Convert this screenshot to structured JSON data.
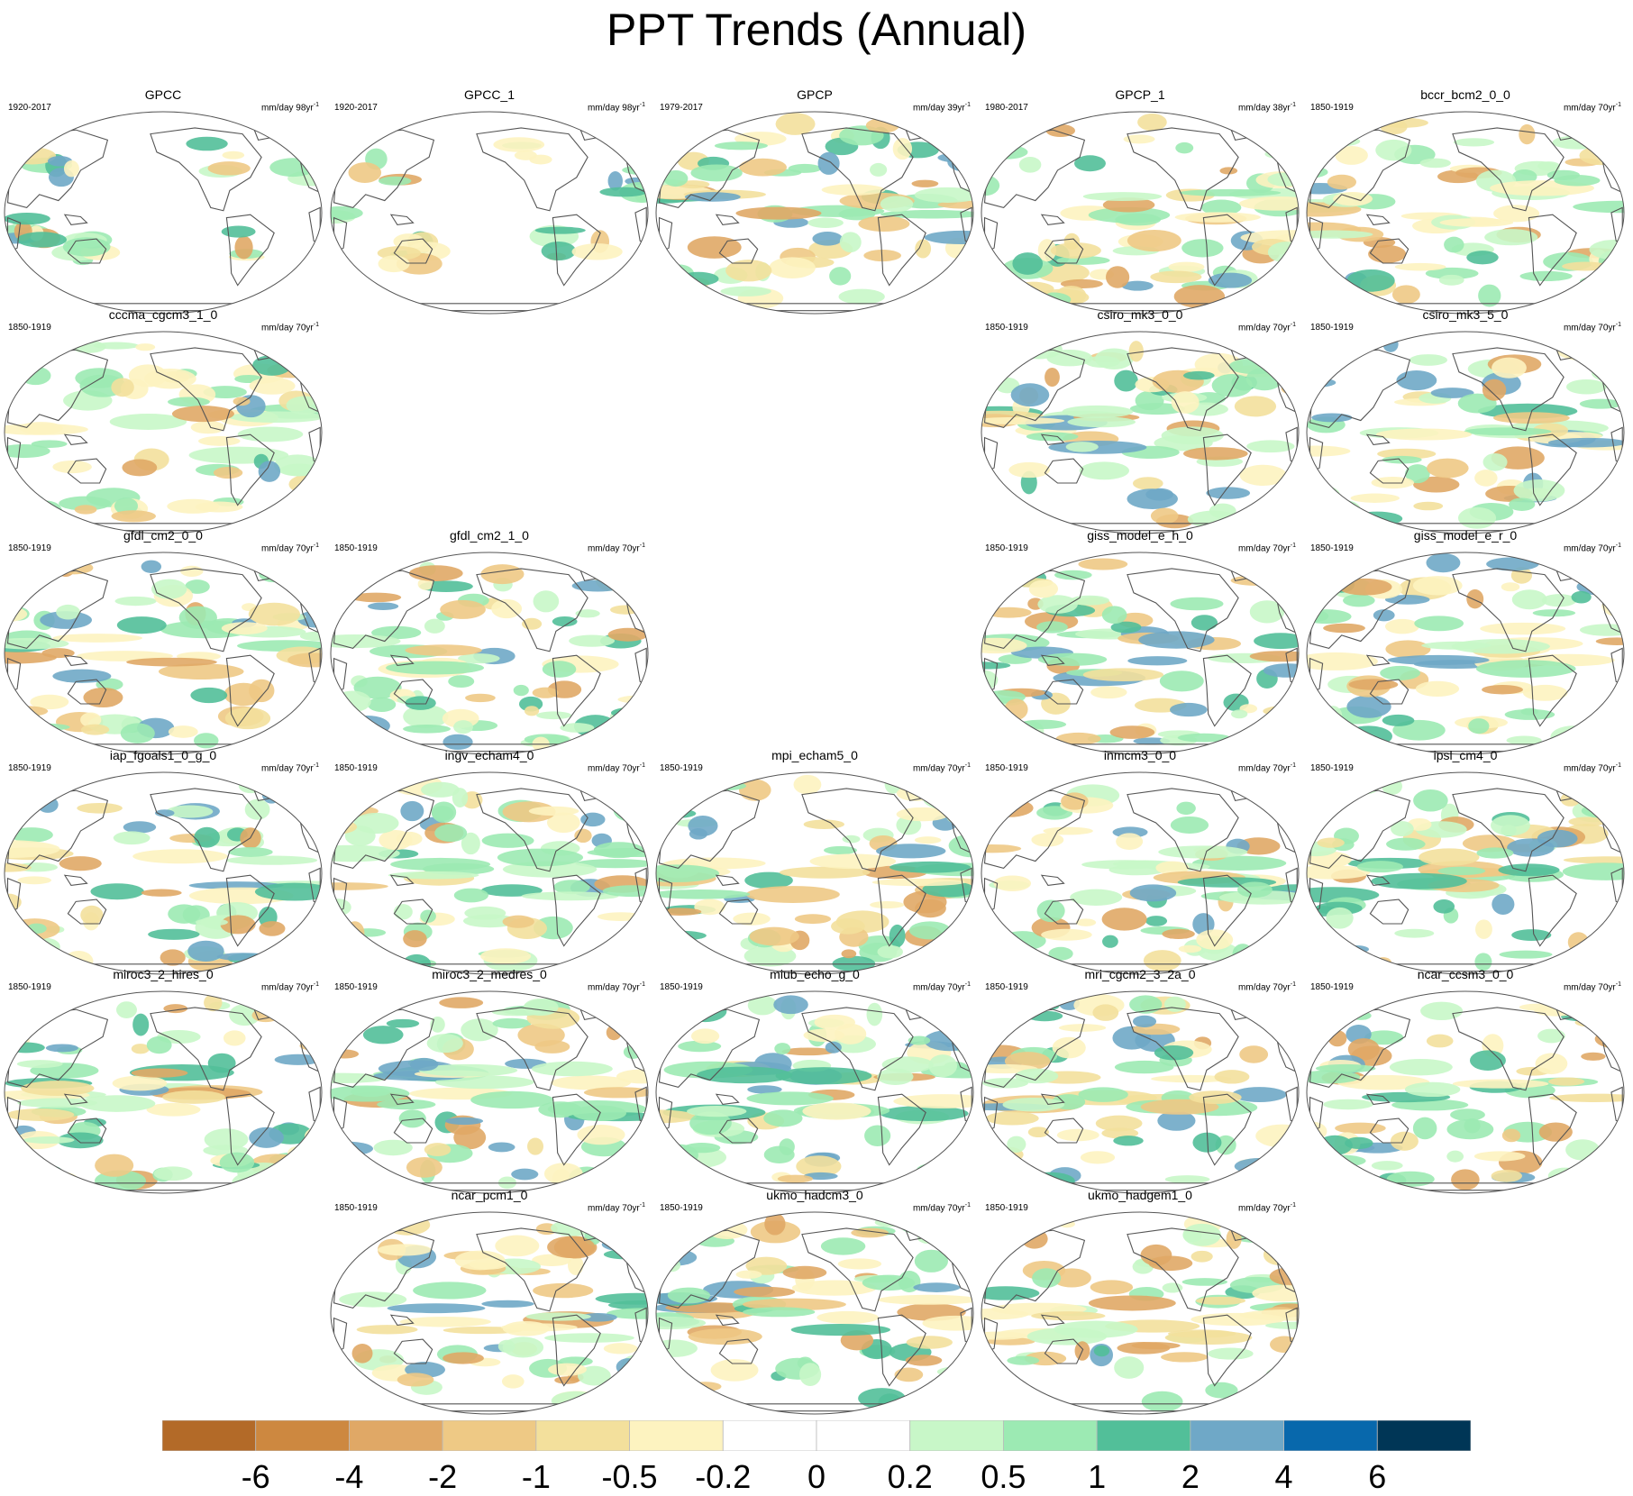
{
  "title": "PPT Trends (Annual)",
  "chart_data": {
    "type": "heatmap",
    "title": "PPT Trends (Annual)",
    "colorbar": {
      "labels": [
        "-6",
        "-4",
        "-2",
        "-1",
        "-0.5",
        "-0.2",
        "0",
        "0.2",
        "0.5",
        "1",
        "2",
        "4",
        "6"
      ],
      "colors": [
        "#b36a28",
        "#cd8840",
        "#e0a866",
        "#eec985",
        "#f3e09c",
        "#fdf3c0",
        "#ffffff",
        "#ffffff",
        "#c8f7c8",
        "#9ceab3",
        "#52bf99",
        "#6fa8c7",
        "#0868ac",
        "#003656"
      ]
    },
    "panels": [
      {
        "name": "GPCC",
        "period": "1920-2017",
        "units": "mm/day 98yr",
        "exp": "-1",
        "land_only": true
      },
      {
        "name": "GPCC_1",
        "period": "1920-2017",
        "units": "mm/day 98yr",
        "exp": "-1",
        "land_only": true
      },
      {
        "name": "GPCP",
        "period": "1979-2017",
        "units": "mm/day 39yr",
        "exp": "-1"
      },
      {
        "name": "GPCP_1",
        "period": "1980-2017",
        "units": "mm/day 38yr",
        "exp": "-1"
      },
      {
        "name": "bccr_bcm2_0_0",
        "period": "1850-1919",
        "units": "mm/day 70yr",
        "exp": "-1"
      },
      {
        "name": "cccma_cgcm3_1_0",
        "period": "1850-1919",
        "units": "mm/day 70yr",
        "exp": "-1"
      },
      {
        "name": "csiro_mk3_0_0",
        "period": "1850-1919",
        "units": "mm/day 70yr",
        "exp": "-1"
      },
      {
        "name": "csiro_mk3_5_0",
        "period": "1850-1919",
        "units": "mm/day 70yr",
        "exp": "-1"
      },
      {
        "name": "gfdl_cm2_0_0",
        "period": "1850-1919",
        "units": "mm/day 70yr",
        "exp": "-1"
      },
      {
        "name": "gfdl_cm2_1_0",
        "period": "1850-1919",
        "units": "mm/day 70yr",
        "exp": "-1"
      },
      {
        "name": "giss_model_e_h_0",
        "period": "1850-1919",
        "units": "mm/day 70yr",
        "exp": "-1"
      },
      {
        "name": "giss_model_e_r_0",
        "period": "1850-1919",
        "units": "mm/day 70yr",
        "exp": "-1"
      },
      {
        "name": "iap_fgoals1_0_g_0",
        "period": "1850-1919",
        "units": "mm/day 70yr",
        "exp": "-1"
      },
      {
        "name": "ingv_echam4_0",
        "period": "1850-1919",
        "units": "mm/day 70yr",
        "exp": "-1"
      },
      {
        "name": "mpi_echam5_0",
        "period": "1850-1919",
        "units": "mm/day 70yr",
        "exp": "-1"
      },
      {
        "name": "inmcm3_0_0",
        "period": "1850-1919",
        "units": "mm/day 70yr",
        "exp": "-1"
      },
      {
        "name": "ipsl_cm4_0",
        "period": "1850-1919",
        "units": "mm/day 70yr",
        "exp": "-1"
      },
      {
        "name": "miroc3_2_hires_0",
        "period": "1850-1919",
        "units": "mm/day 70yr",
        "exp": "-1"
      },
      {
        "name": "miroc3_2_medres_0",
        "period": "1850-1919",
        "units": "mm/day 70yr",
        "exp": "-1"
      },
      {
        "name": "miub_echo_g_0",
        "period": "1850-1919",
        "units": "mm/day 70yr",
        "exp": "-1"
      },
      {
        "name": "mri_cgcm2_3_2a_0",
        "period": "1850-1919",
        "units": "mm/day 70yr",
        "exp": "-1"
      },
      {
        "name": "ncar_ccsm3_0_0",
        "period": "1850-1919",
        "units": "mm/day 70yr",
        "exp": "-1"
      },
      {
        "name": "ncar_pcm1_0",
        "period": "1850-1919",
        "units": "mm/day 70yr",
        "exp": "-1"
      },
      {
        "name": "ukmo_hadcm3_0",
        "period": "1850-1919",
        "units": "mm/day 70yr",
        "exp": "-1"
      },
      {
        "name": "ukmo_hadgem1_0",
        "period": "1850-1919",
        "units": "mm/day 70yr",
        "exp": "-1"
      }
    ]
  }
}
